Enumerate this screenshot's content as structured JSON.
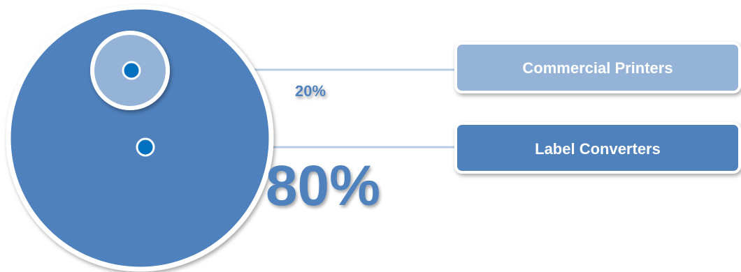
{
  "chart_data": {
    "type": "pie",
    "categories": [
      "Commercial Printers",
      "Label Converters"
    ],
    "values": [
      20,
      80
    ],
    "value_labels": [
      "20%",
      "80%"
    ],
    "title": "",
    "legend": "right"
  },
  "colors": {
    "large_circle": "#4f81bd",
    "small_circle": "#95b3d7",
    "dot_fill": "#0070c0",
    "connector_line": "#b8cce4",
    "label_small_pct": "#4f81bd",
    "label_large_pct": "#4f81bd",
    "box_commercial": "#95b3d7",
    "box_label": "#4f81bd",
    "box_text": "#ffffff"
  }
}
